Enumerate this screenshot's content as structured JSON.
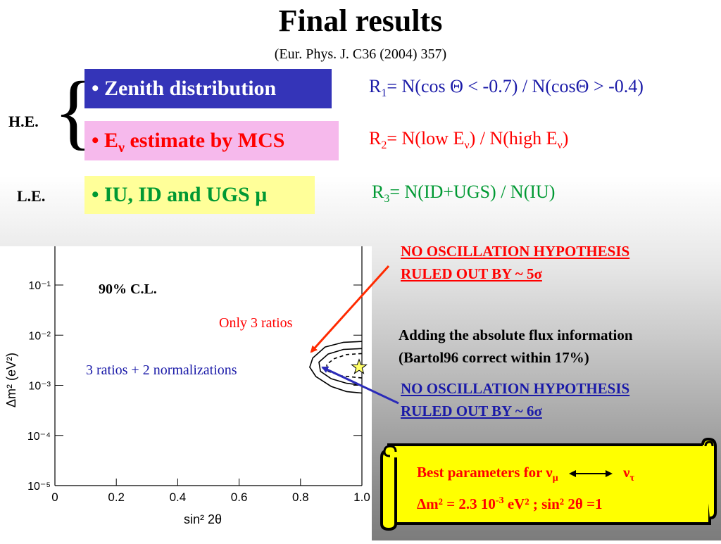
{
  "header": {
    "title": "Final results",
    "reference": "(Eur. Phys. J. C36 (2004) 357)"
  },
  "groups": {
    "he_label": "H.E.",
    "le_label": "L.E."
  },
  "methods": {
    "zenith": "• Zenith distribution",
    "energy_prefix": "• E",
    "energy_sub": "ν",
    "energy_suffix": " estimate by MCS",
    "iu": "• IU, ID and UGS μ"
  },
  "ratios": {
    "r1_sub": "1",
    "r1_text": "= N(cos Θ < -0.7) / N(cosΘ > -0.4)",
    "r2_sub": "2",
    "r2_text_a": "= N(low E",
    "r2_text_b": ") / N(high E",
    "r2_text_c": ")",
    "r2_nu": "ν",
    "r3_sub": "3",
    "r3_text": "= N(ID+UGS) / N(IU)"
  },
  "annotations": {
    "no_osc_5_line1": "NO OSCILLATION HYPOTHESIS",
    "no_osc_5_line2": "RULED OUT BY ~ 5σ",
    "adding_line1": "Adding the absolute flux information",
    "adding_line2": "(Bartol96 correct within 17%)",
    "no_osc_6_line1": "NO OSCILLATION HYPOTHESIS",
    "no_osc_6_line2": "RULED OUT BY ~ 6σ"
  },
  "best_params": {
    "prefix": "Best parameters for ν",
    "numu_sub": "μ",
    "nutau": "ν",
    "nutau_sub": "τ",
    "dm2_text": "Δm² = 2.3 10",
    "dm2_exp": "-3",
    "dm2_unit": " eV²  ;  sin² 2θ =1"
  },
  "chart_data": {
    "type": "line",
    "xlabel": "sin² 2θ",
    "ylabel": "Δm² (eV²)",
    "xlim": [
      0,
      1.0
    ],
    "ylim": [
      1e-05,
      0.1
    ],
    "yscale": "log",
    "xticks": [
      "0",
      "0.2",
      "0.4",
      "0.6",
      "0.8",
      "1.0"
    ],
    "yticks": [
      "10⁻¹",
      "10⁻²",
      "10⁻³",
      "10⁻⁴",
      "10⁻⁵"
    ],
    "cl_label": "90% C.L.",
    "series": [
      {
        "name": "Only 3 ratios",
        "style": "solid",
        "color": "#000000",
        "points": [
          [
            1.0,
            0.0075
          ],
          [
            0.94,
            0.0072
          ],
          [
            0.88,
            0.0058
          ],
          [
            0.84,
            0.0035
          ],
          [
            0.83,
            0.0023
          ],
          [
            0.85,
            0.0015
          ],
          [
            0.9,
            0.00095
          ],
          [
            0.95,
            0.00075
          ],
          [
            1.0,
            0.0007
          ]
        ]
      },
      {
        "name": "3 ratios + 2 normalizations",
        "style": "solid",
        "color": "#000000",
        "points": [
          [
            1.0,
            0.0054
          ],
          [
            0.94,
            0.0052
          ],
          [
            0.89,
            0.0042
          ],
          [
            0.86,
            0.0029
          ],
          [
            0.865,
            0.0019
          ],
          [
            0.9,
            0.00135
          ],
          [
            0.95,
            0.0011
          ],
          [
            1.0,
            0.001
          ]
        ]
      },
      {
        "name": "3 ratios + 2 normalizations (dashed)",
        "style": "dashed",
        "color": "#000000",
        "points": [
          [
            1.0,
            0.0043
          ],
          [
            0.95,
            0.0041
          ],
          [
            0.91,
            0.0034
          ],
          [
            0.885,
            0.0026
          ],
          [
            0.89,
            0.0019
          ],
          [
            0.93,
            0.00155
          ],
          [
            1.0,
            0.0014
          ]
        ]
      }
    ],
    "best_fit": {
      "x": 1.0,
      "y": 0.0023
    },
    "series_labels": {
      "red": "Only 3 ratios",
      "blue": "3 ratios + 2 normalizations"
    }
  }
}
